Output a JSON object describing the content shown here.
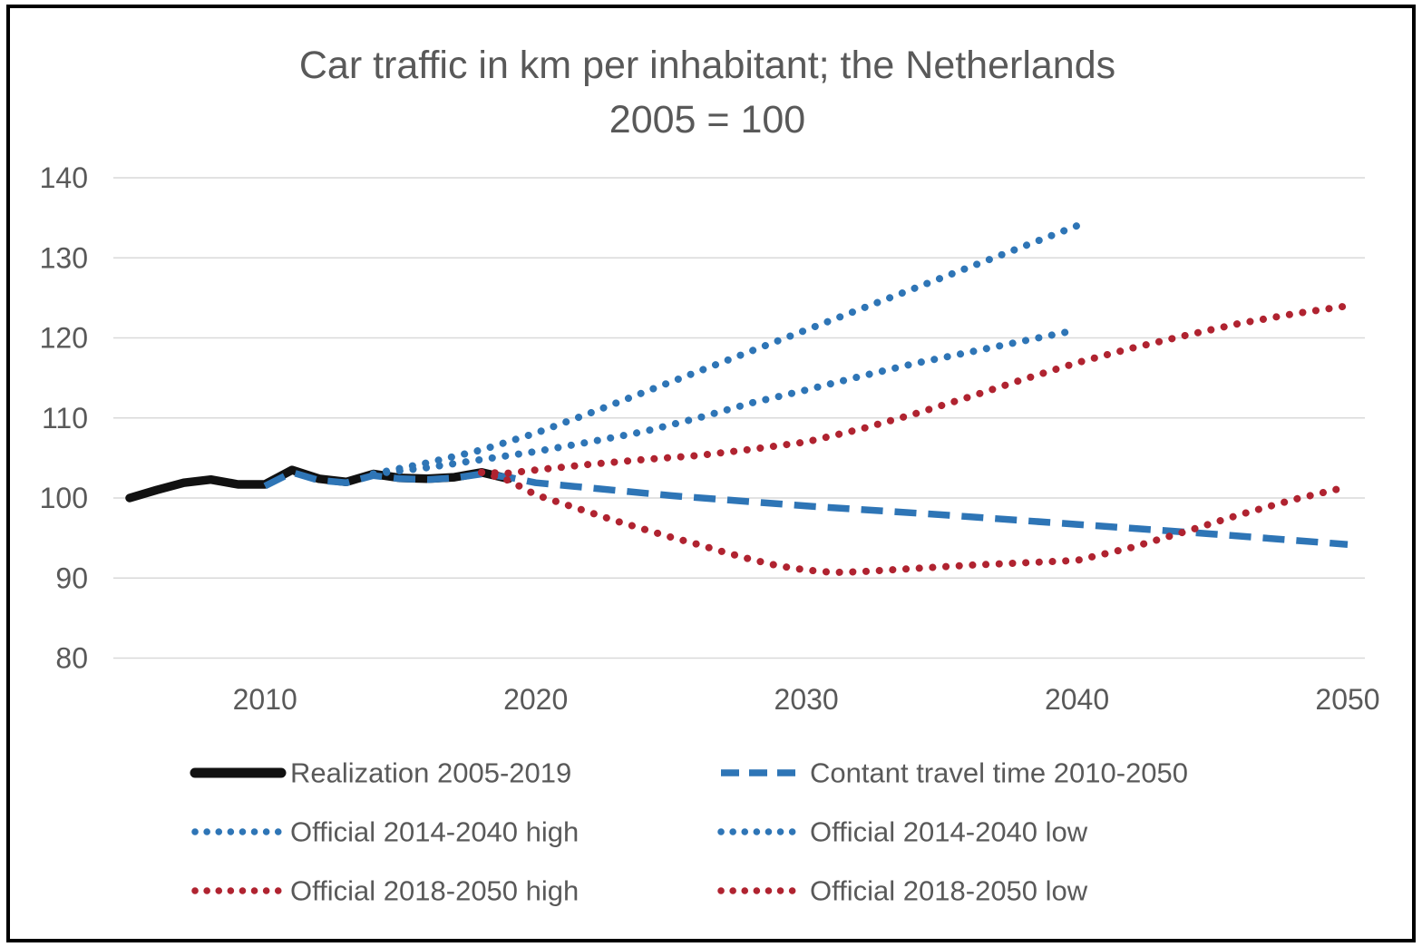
{
  "figure": {
    "title_line1": "Car traffic in km per inhabitant; the Netherlands",
    "title_line2": "2005 = 100"
  },
  "colors": {
    "blue": "#2E75B6",
    "red": "#B02330",
    "black": "#111111",
    "gridline": "#D9D9D9",
    "text": "#595959",
    "frame": "#000000",
    "background": "#FFFFFF"
  },
  "chart_data": {
    "type": "line",
    "title": "Car traffic in km per inhabitant; the Netherlands",
    "subtitle": "2005 = 100",
    "xlabel": "",
    "ylabel": "",
    "xlim": [
      2005,
      2050.7
    ],
    "ylim": [
      80,
      140
    ],
    "yticks": [
      140,
      130,
      120,
      110,
      100,
      90,
      80
    ],
    "xticks": [
      2010,
      2020,
      2030,
      2040,
      2050
    ],
    "grid": "horizontal",
    "legend_position": "bottom-two-columns",
    "series": [
      {
        "name": "Realization 2005-2019",
        "color": "#111111",
        "style": "solid",
        "width": 9.5,
        "points": [
          [
            2005,
            100.0
          ],
          [
            2006,
            101.0
          ],
          [
            2007,
            101.9
          ],
          [
            2008,
            102.3
          ],
          [
            2009,
            101.7
          ],
          [
            2010,
            101.7
          ],
          [
            2011,
            103.5
          ],
          [
            2012,
            102.4
          ],
          [
            2013,
            102.0
          ],
          [
            2014,
            103.0
          ],
          [
            2015,
            102.5
          ],
          [
            2016,
            102.4
          ],
          [
            2017,
            102.6
          ],
          [
            2018,
            103.2
          ],
          [
            2019,
            102.4
          ]
        ]
      },
      {
        "name": "Contant travel time 2010-2050",
        "color": "#2E75B6",
        "style": "dashed",
        "width": 7.5,
        "points": [
          [
            2010,
            101.5
          ],
          [
            2011,
            103.2
          ],
          [
            2012,
            102.2
          ],
          [
            2013,
            101.9
          ],
          [
            2014,
            102.8
          ],
          [
            2015,
            102.4
          ],
          [
            2016,
            102.3
          ],
          [
            2017,
            102.5
          ],
          [
            2018,
            103.0
          ],
          [
            2019,
            102.6
          ],
          [
            2020,
            101.9
          ],
          [
            2025,
            100.3
          ],
          [
            2030,
            99.0
          ],
          [
            2035,
            97.9
          ],
          [
            2040,
            96.7
          ],
          [
            2045,
            95.5
          ],
          [
            2050,
            94.2
          ]
        ]
      },
      {
        "name": "Official 2014-2040 high",
        "color": "#2E75B6",
        "style": "dotted",
        "width": 8,
        "points": [
          [
            2014,
            103.0
          ],
          [
            2016,
            104.4
          ],
          [
            2018,
            106.0
          ],
          [
            2020,
            108.1
          ],
          [
            2022,
            110.6
          ],
          [
            2024,
            113.2
          ],
          [
            2026,
            115.8
          ],
          [
            2028,
            118.4
          ],
          [
            2030,
            121.0
          ],
          [
            2032,
            123.6
          ],
          [
            2034,
            126.2
          ],
          [
            2036,
            128.8
          ],
          [
            2038,
            131.4
          ],
          [
            2040,
            134.0
          ]
        ]
      },
      {
        "name": "Official 2014-2040 low",
        "color": "#2E75B6",
        "style": "dotted",
        "width": 8,
        "points": [
          [
            2014,
            103.0
          ],
          [
            2016,
            103.8
          ],
          [
            2018,
            104.8
          ],
          [
            2020,
            105.8
          ],
          [
            2022,
            107.0
          ],
          [
            2024,
            108.3
          ],
          [
            2026,
            110.0
          ],
          [
            2028,
            111.9
          ],
          [
            2030,
            113.5
          ],
          [
            2032,
            115.2
          ],
          [
            2034,
            116.8
          ],
          [
            2036,
            118.2
          ],
          [
            2038,
            119.6
          ],
          [
            2040,
            121.0
          ]
        ]
      },
      {
        "name": "Official 2018-2050 high",
        "color": "#B02330",
        "style": "dotted",
        "width": 8,
        "points": [
          [
            2018,
            103.2
          ],
          [
            2019,
            103.1
          ],
          [
            2020,
            103.5
          ],
          [
            2022,
            104.2
          ],
          [
            2024,
            104.8
          ],
          [
            2026,
            105.3
          ],
          [
            2028,
            106.1
          ],
          [
            2030,
            107.0
          ],
          [
            2032,
            108.6
          ],
          [
            2034,
            110.5
          ],
          [
            2036,
            112.6
          ],
          [
            2038,
            114.8
          ],
          [
            2040,
            116.9
          ],
          [
            2042,
            118.7
          ],
          [
            2044,
            120.3
          ],
          [
            2046,
            121.8
          ],
          [
            2048,
            123.0
          ],
          [
            2050,
            124.0
          ]
        ]
      },
      {
        "name": "Official 2018-2050 low",
        "color": "#B02330",
        "style": "dotted",
        "width": 8,
        "points": [
          [
            2018,
            103.2
          ],
          [
            2019,
            102.2
          ],
          [
            2020,
            100.4
          ],
          [
            2021,
            99.3
          ],
          [
            2022,
            98.2
          ],
          [
            2023,
            97.1
          ],
          [
            2024,
            96.1
          ],
          [
            2025,
            95.1
          ],
          [
            2026,
            94.2
          ],
          [
            2027,
            93.2
          ],
          [
            2028,
            92.3
          ],
          [
            2029,
            91.5
          ],
          [
            2030,
            91.0
          ],
          [
            2031,
            90.7
          ],
          [
            2032,
            90.8
          ],
          [
            2034,
            91.2
          ],
          [
            2036,
            91.6
          ],
          [
            2038,
            91.9
          ],
          [
            2040,
            92.2
          ],
          [
            2042,
            93.8
          ],
          [
            2044,
            95.8
          ],
          [
            2046,
            97.9
          ],
          [
            2048,
            99.8
          ],
          [
            2050,
            101.4
          ]
        ]
      }
    ]
  }
}
